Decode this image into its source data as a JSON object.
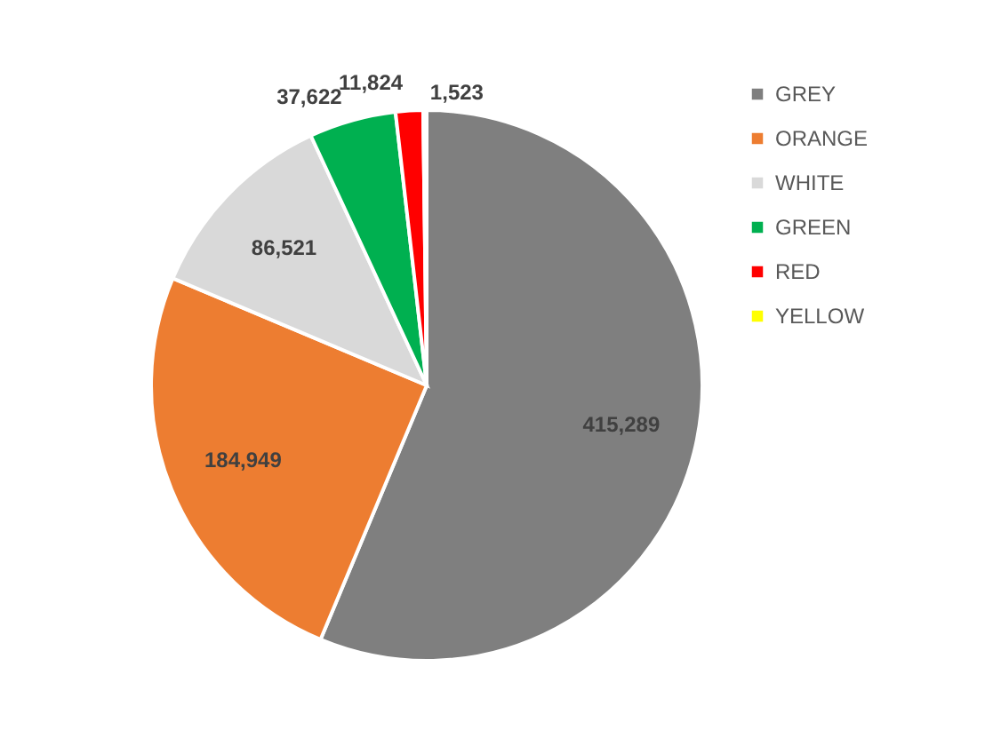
{
  "chart_data": {
    "type": "pie",
    "categories": [
      "GREY",
      "ORANGE",
      "WHITE",
      "GREEN",
      "RED",
      "YELLOW"
    ],
    "values": [
      415289,
      184949,
      86521,
      37622,
      11824,
      1523
    ],
    "value_labels": [
      "415,289",
      "184,949",
      "86,521",
      "37,622",
      "11,824",
      "1,523"
    ],
    "colors": [
      "#7f7f7f",
      "#ed7d31",
      "#d9d9d9",
      "#00b050",
      "#ff0000",
      "#ffff00"
    ],
    "legend": "right"
  }
}
